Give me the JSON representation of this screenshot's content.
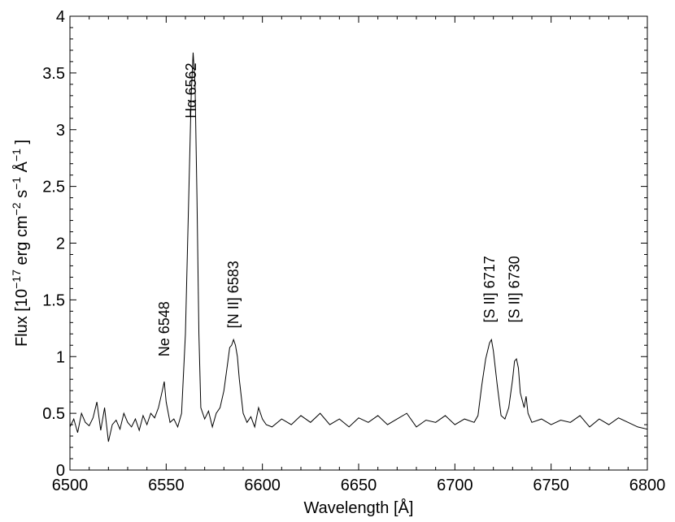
{
  "chart_data": {
    "type": "line",
    "title": "",
    "xlabel": "Wavelength [Å]",
    "ylabel": {
      "prefix": "Flux [10",
      "exp1": "−17",
      "mid1": " erg cm",
      "exp2": "−2",
      "mid2": " s",
      "exp3": "−1",
      "mid3": "  Å",
      "exp4": "−1",
      "suffix": " ]"
    },
    "xlim": [
      6500,
      6800
    ],
    "ylim": [
      0,
      4
    ],
    "xticks": [
      6500,
      6550,
      6600,
      6650,
      6700,
      6750,
      6800
    ],
    "yticks": [
      0,
      0.5,
      1,
      1.5,
      2,
      2.5,
      3,
      3.5,
      4
    ],
    "ytick_labels": [
      "0",
      "0.5",
      "1",
      "1.5",
      "2",
      "2.5",
      "3",
      "3.5",
      "4"
    ],
    "grid": false,
    "legend": "none",
    "line_color": "#000000",
    "annotations": [
      {
        "text": "Ne 6548",
        "x": 6549,
        "y": 1.0
      },
      {
        "text": "Hα 6562",
        "x": 6563,
        "y": 3.1
      },
      {
        "text": "[N II] 6583",
        "x": 6585,
        "y": 1.25
      },
      {
        "text": "[S II] 6717",
        "x": 6718,
        "y": 1.3
      },
      {
        "text": "[S II] 6730",
        "x": 6731,
        "y": 1.3
      }
    ],
    "series": [
      {
        "x": [
          6500,
          6502,
          6504,
          6506,
          6508,
          6510,
          6512,
          6514,
          6516,
          6518,
          6520,
          6522,
          6524,
          6526,
          6528,
          6530,
          6532,
          6534,
          6536,
          6538,
          6540,
          6542,
          6544,
          6546,
          6548,
          6549,
          6550,
          6552,
          6554,
          6556,
          6558,
          6560,
          6562,
          6563,
          6564,
          6565,
          6566,
          6567,
          6568,
          6570,
          6572,
          6574,
          6576,
          6578,
          6580,
          6582,
          6583,
          6584,
          6585,
          6586,
          6587,
          6588,
          6590,
          6592,
          6594,
          6596,
          6598,
          6600,
          6602,
          6605,
          6610,
          6615,
          6620,
          6625,
          6630,
          6635,
          6640,
          6645,
          6650,
          6655,
          6660,
          6665,
          6670,
          6675,
          6680,
          6685,
          6690,
          6695,
          6700,
          6705,
          6710,
          6712,
          6714,
          6716,
          6717,
          6718,
          6719,
          6720,
          6722,
          6724,
          6726,
          6728,
          6730,
          6731,
          6732,
          6733,
          6734,
          6736,
          6737,
          6738,
          6740,
          6745,
          6750,
          6755,
          6760,
          6765,
          6770,
          6775,
          6780,
          6785,
          6790,
          6795,
          6800
        ],
        "y": [
          0.38,
          0.45,
          0.33,
          0.5,
          0.42,
          0.39,
          0.46,
          0.6,
          0.35,
          0.55,
          0.25,
          0.4,
          0.44,
          0.36,
          0.5,
          0.42,
          0.38,
          0.45,
          0.35,
          0.48,
          0.4,
          0.5,
          0.46,
          0.55,
          0.7,
          0.78,
          0.6,
          0.42,
          0.45,
          0.38,
          0.5,
          1.2,
          2.6,
          3.3,
          3.68,
          3.4,
          2.4,
          1.2,
          0.55,
          0.45,
          0.52,
          0.38,
          0.5,
          0.55,
          0.7,
          0.95,
          1.08,
          1.1,
          1.15,
          1.1,
          1.0,
          0.8,
          0.5,
          0.42,
          0.47,
          0.38,
          0.55,
          0.45,
          0.4,
          0.38,
          0.45,
          0.4,
          0.48,
          0.42,
          0.5,
          0.4,
          0.45,
          0.38,
          0.46,
          0.42,
          0.48,
          0.4,
          0.45,
          0.5,
          0.38,
          0.44,
          0.42,
          0.48,
          0.4,
          0.45,
          0.42,
          0.48,
          0.75,
          0.98,
          1.05,
          1.12,
          1.15,
          1.05,
          0.75,
          0.48,
          0.45,
          0.55,
          0.8,
          0.96,
          0.98,
          0.9,
          0.68,
          0.55,
          0.65,
          0.5,
          0.42,
          0.45,
          0.4,
          0.44,
          0.42,
          0.48,
          0.38,
          0.45,
          0.4,
          0.46,
          0.42,
          0.38,
          0.36
        ]
      }
    ]
  }
}
